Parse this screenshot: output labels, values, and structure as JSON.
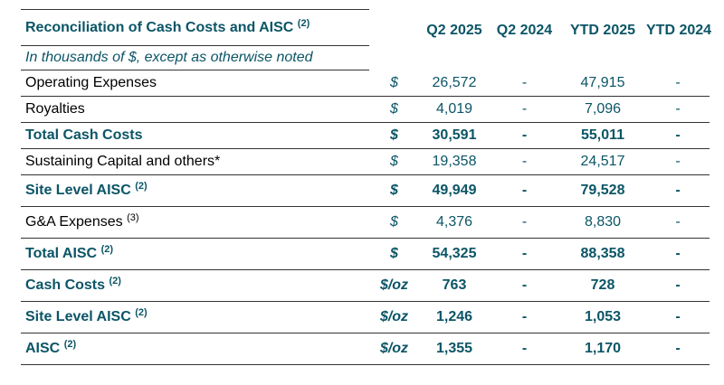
{
  "table": {
    "title": "Reconciliation of Cash Costs and AISC",
    "title_note": "(2)",
    "subtitle": "In thousands of $, except as otherwise noted",
    "columns": [
      "Q2 2025",
      "Q2 2024",
      "YTD 2025",
      "YTD 2024"
    ],
    "rows": [
      {
        "label": "Operating Expenses",
        "note": "",
        "unit": "$",
        "q2_2025": "26,572",
        "q2_2024": "-",
        "ytd_2025": "47,915",
        "ytd_2024": "-"
      },
      {
        "label": "Royalties",
        "note": "",
        "unit": "$",
        "q2_2025": "4,019",
        "q2_2024": "-",
        "ytd_2025": "7,096",
        "ytd_2024": "-"
      },
      {
        "label": "Total Cash Costs",
        "note": "",
        "unit": "$",
        "q2_2025": "30,591",
        "q2_2024": "-",
        "ytd_2025": "55,011",
        "ytd_2024": "-"
      },
      {
        "label": "Sustaining Capital and others*",
        "note": "",
        "unit": "$",
        "q2_2025": "19,358",
        "q2_2024": "-",
        "ytd_2025": "24,517",
        "ytd_2024": "-"
      },
      {
        "label": "Site Level AISC",
        "note": "(2)",
        "unit": "$",
        "q2_2025": "49,949",
        "q2_2024": "-",
        "ytd_2025": "79,528",
        "ytd_2024": "-"
      },
      {
        "label": "G&A Expenses",
        "note": "(3)",
        "unit": "$",
        "q2_2025": "4,376",
        "q2_2024": "-",
        "ytd_2025": "8,830",
        "ytd_2024": "-"
      },
      {
        "label": "Total AISC",
        "note": "(2)",
        "unit": "$",
        "q2_2025": "54,325",
        "q2_2024": "-",
        "ytd_2025": "88,358",
        "ytd_2024": "-"
      },
      {
        "label": "Cash Costs",
        "note": "(2)",
        "unit": "$/oz",
        "q2_2025": "763",
        "q2_2024": "-",
        "ytd_2025": "728",
        "ytd_2024": "-"
      },
      {
        "label": "Site Level AISC",
        "note": "(2)",
        "unit": "$/oz",
        "q2_2025": "1,246",
        "q2_2024": "-",
        "ytd_2025": "1,053",
        "ytd_2024": "-"
      },
      {
        "label": "AISC",
        "note": "(2)",
        "unit": "$/oz",
        "q2_2025": "1,355",
        "q2_2024": "-",
        "ytd_2025": "1,170",
        "ytd_2024": "-"
      }
    ]
  },
  "colors": {
    "accent": "#0b5566",
    "text": "#000000",
    "rule": "#333333"
  }
}
